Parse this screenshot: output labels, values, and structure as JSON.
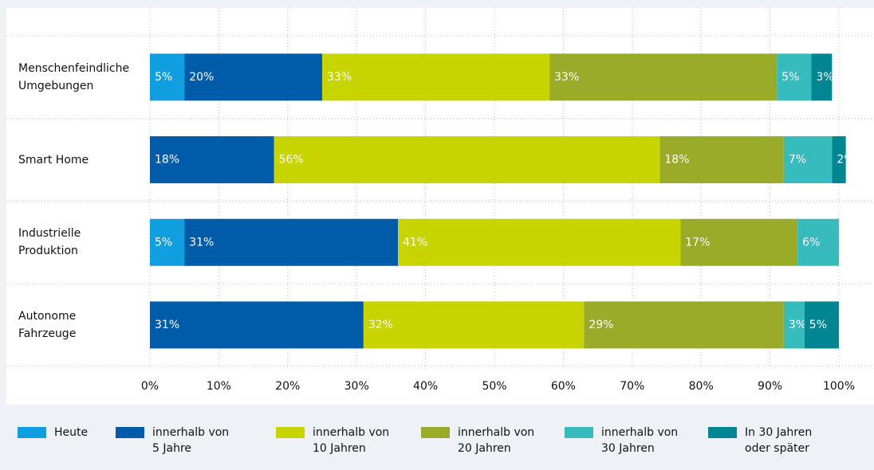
{
  "chart_data": {
    "type": "stacked-bar-horizontal",
    "categories": [
      "Menschenfeindliche\nUmgebungen",
      "Smart Home",
      "Industrielle\nProduktion",
      "Autonome\nFahrzeuge"
    ],
    "series": [
      {
        "name": "Heute",
        "color": "#0f9fe0",
        "values": [
          5,
          null,
          5,
          null
        ],
        "value_labels": [
          "5%",
          null,
          "5%",
          null
        ]
      },
      {
        "name": "innerhalb von\n5 Jahre",
        "color": "#005ca9",
        "values": [
          20,
          18,
          31,
          31
        ],
        "value_labels": [
          "20%",
          "18%",
          "31%",
          "31%"
        ]
      },
      {
        "name": "innerhalb von\n10 Jahren",
        "color": "#c8d400",
        "values": [
          33,
          56,
          41,
          32
        ],
        "value_labels": [
          "33%",
          "56%",
          "41%",
          "32%"
        ]
      },
      {
        "name": "innerhalb von\n20 Jahren",
        "color": "#9aab2a",
        "values": [
          33,
          18,
          17,
          29
        ],
        "value_labels": [
          "33%",
          "18%",
          "17%",
          "29%"
        ]
      },
      {
        "name": "innerhalb von\n30 Jahren",
        "color": "#37bbbd",
        "values": [
          5,
          7,
          6,
          3
        ],
        "value_labels": [
          "5%",
          "7%",
          "6%",
          "3%"
        ]
      },
      {
        "name": "In 30 Jahren\noder später",
        "color": "#008593",
        "values": [
          3,
          2,
          null,
          5
        ],
        "value_labels": [
          "3%",
          "2%",
          null,
          "5%"
        ]
      }
    ],
    "xlim": [
      0,
      100
    ],
    "xticks": [
      {
        "value": 0,
        "label": "0%"
      },
      {
        "value": 10,
        "label": "10%"
      },
      {
        "value": 20,
        "label": "20%"
      },
      {
        "value": 30,
        "label": "30%"
      },
      {
        "value": 40,
        "label": "40%"
      },
      {
        "value": 50,
        "label": "50%"
      },
      {
        "value": 60,
        "label": "60%"
      },
      {
        "value": 70,
        "label": "70%"
      },
      {
        "value": 80,
        "label": "80%"
      },
      {
        "value": 90,
        "label": "90%"
      },
      {
        "value": 100,
        "label": "100%"
      }
    ],
    "grid": true,
    "legend": "bottom"
  }
}
